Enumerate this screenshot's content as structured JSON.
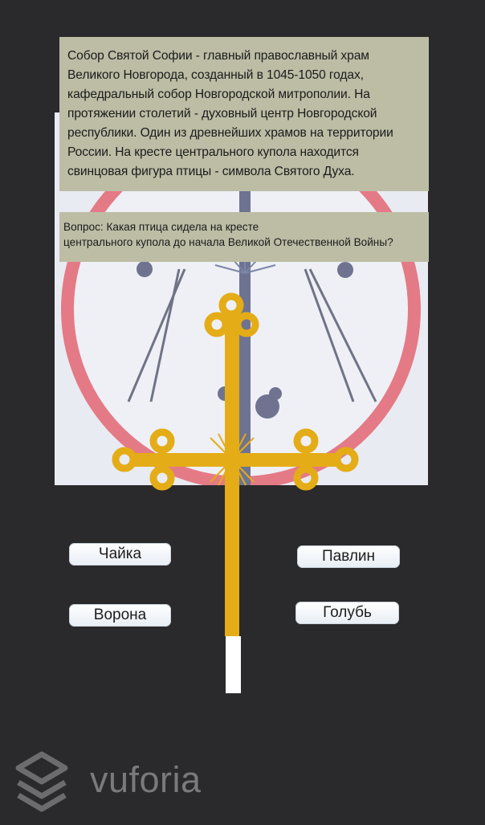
{
  "info": {
    "text_lines": [
      "Собор Святой Софии - главный православный храм",
      "Великого Новгорода, созданный в 1045-1050 годах,",
      "кафедральный собор Новгородской митрополии. На",
      "протяжении столетий - духовный центр Новгородской",
      "республики. Один из древнейших храмов на территории",
      "России. На кресте центрального купола находится",
      "свинцовая фигура птицы - символа Святого Духа."
    ]
  },
  "question": {
    "lines": [
      "Вопрос: Какая птица сидела на кресте",
      "центрального купола до начала Великой Отечественной Войны?"
    ]
  },
  "answers": [
    "Чайка",
    "Павлин",
    "Ворона",
    "Голубь"
  ],
  "brand": {
    "name": "vuforia",
    "icon": "vuforia-logo-icon"
  },
  "colors": {
    "background": "#2a292b",
    "panel": "#bdbda6",
    "cross": "#e4ac16",
    "ring": "#e47a86"
  }
}
